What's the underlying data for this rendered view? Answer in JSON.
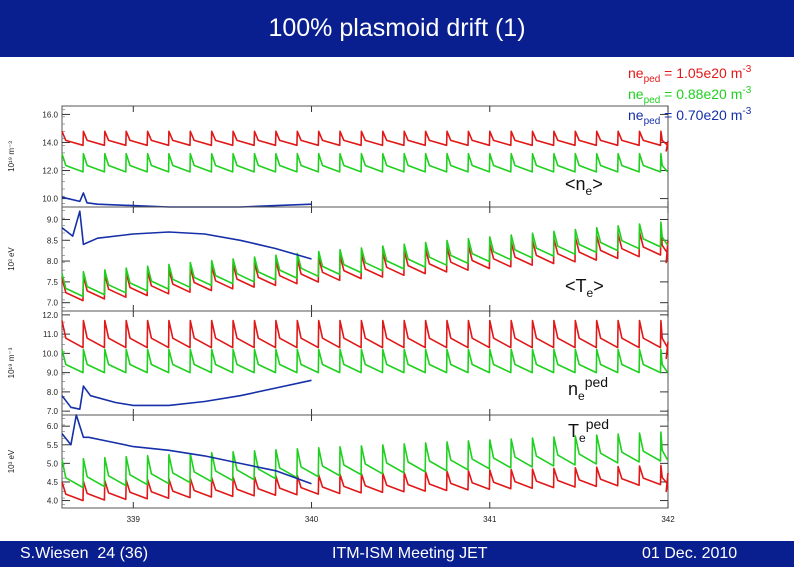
{
  "header": {
    "title": "100% plasmoid drift (1)"
  },
  "footer": {
    "author": "S.Wiesen",
    "page": "24 (36)",
    "meeting": "ITM-ISM Meeting JET",
    "date": "01 Dec. 2010"
  },
  "colors": {
    "bar": "#0a1f8f",
    "red": "#e01818",
    "green": "#20d020",
    "blue": "#1530a8"
  },
  "chart_data": {
    "type": "line",
    "x_ticks": [
      "339",
      "340",
      "341",
      "342"
    ],
    "x_tick_values": [
      339,
      340,
      341,
      342
    ],
    "xlim": [
      338.6,
      342.0
    ],
    "legend": [
      {
        "base": "ne",
        "sub": "ped",
        "rest": " = 1.05e20 m",
        "sup": "-3",
        "color": "#e01818"
      },
      {
        "base": "ne",
        "sub": "ped",
        "rest": " = 0.88e20 m",
        "sup": "-3",
        "color": "#20d020"
      },
      {
        "base": "ne",
        "sub": "ped",
        "rest": " = 0.70e20 m",
        "sup": "-3",
        "color": "#1530a8"
      }
    ],
    "legend_position": "top-right",
    "panels": [
      {
        "label": "<ne>",
        "label_base": "<n",
        "label_sub": "e",
        "label_end": ">",
        "ylabel": "10¹⁹  m⁻³",
        "yticks": [
          "10.0",
          "12.0",
          "14.0",
          "16.0"
        ],
        "ytick_values": [
          10,
          12,
          14,
          16
        ],
        "ylim": [
          9.4,
          16.6
        ],
        "series": [
          {
            "color": "red",
            "kind": "sawtooth",
            "start": 338.6,
            "end": 342.0,
            "period": 0.12,
            "high": 14.8,
            "low": 13.8,
            "endspike": true
          },
          {
            "color": "green",
            "kind": "sawtooth",
            "start": 338.6,
            "end": 342.0,
            "period": 0.12,
            "high": 13.2,
            "low": 11.9,
            "endspike": false
          },
          {
            "color": "blue",
            "kind": "points",
            "points": [
              [
                338.6,
                10.1
              ],
              [
                338.7,
                9.8
              ],
              [
                338.72,
                10.4
              ],
              [
                338.74,
                9.7
              ],
              [
                338.8,
                9.6
              ],
              [
                339.0,
                9.5
              ],
              [
                339.2,
                9.4
              ],
              [
                339.4,
                9.4
              ],
              [
                339.6,
                9.4
              ],
              [
                339.8,
                9.5
              ],
              [
                340.0,
                9.6
              ]
            ]
          }
        ]
      },
      {
        "label": "<Te>",
        "label_base": "<T",
        "label_sub": "e",
        "label_end": ">",
        "ylabel": "10³  eV",
        "yticks": [
          "7.0",
          "7.5",
          "8.0",
          "8.5",
          "9.0"
        ],
        "ytick_values": [
          7.0,
          7.5,
          8.0,
          8.5,
          9.0
        ],
        "ylim": [
          6.8,
          9.3
        ],
        "series": [
          {
            "color": "red",
            "kind": "sawtooth_ramp",
            "start": 338.6,
            "end": 342.0,
            "period": 0.12,
            "h0": 7.6,
            "h1": 8.75,
            "depth": 0.55,
            "endspike": true
          },
          {
            "color": "green",
            "kind": "sawtooth_ramp",
            "start": 338.6,
            "end": 342.0,
            "period": 0.12,
            "h0": 7.7,
            "h1": 8.95,
            "depth": 0.55,
            "endspike": false
          },
          {
            "color": "blue",
            "kind": "points",
            "points": [
              [
                338.6,
                8.8
              ],
              [
                338.66,
                8.6
              ],
              [
                338.7,
                9.2
              ],
              [
                338.72,
                8.4
              ],
              [
                338.8,
                8.55
              ],
              [
                339.0,
                8.65
              ],
              [
                339.2,
                8.7
              ],
              [
                339.4,
                8.65
              ],
              [
                339.6,
                8.5
              ],
              [
                339.8,
                8.3
              ],
              [
                340.0,
                8.05
              ]
            ]
          }
        ]
      },
      {
        "label": "neped",
        "label_base": "n",
        "label_sub": "e",
        "label_sup": "ped",
        "ylabel": "10¹⁹  m⁻³",
        "yticks": [
          "7.0",
          "8.0",
          "9.0",
          "10.0",
          "11.0",
          "12.0"
        ],
        "ytick_values": [
          7,
          8,
          9,
          10,
          11,
          12
        ],
        "ylim": [
          6.8,
          12.2
        ],
        "series": [
          {
            "color": "red",
            "kind": "sawtooth",
            "start": 338.6,
            "end": 342.0,
            "period": 0.12,
            "high": 11.7,
            "low": 10.3,
            "endspike": true
          },
          {
            "color": "green",
            "kind": "sawtooth",
            "start": 338.6,
            "end": 342.0,
            "period": 0.12,
            "high": 10.2,
            "low": 9.0,
            "endspike": false
          },
          {
            "color": "blue",
            "kind": "points",
            "points": [
              [
                338.6,
                7.8
              ],
              [
                338.65,
                7.2
              ],
              [
                338.7,
                7.1
              ],
              [
                338.72,
                8.3
              ],
              [
                338.76,
                7.8
              ],
              [
                338.9,
                7.45
              ],
              [
                339.0,
                7.3
              ],
              [
                339.2,
                7.3
              ],
              [
                339.4,
                7.5
              ],
              [
                339.6,
                7.8
              ],
              [
                339.8,
                8.2
              ],
              [
                340.0,
                8.6
              ]
            ]
          }
        ]
      },
      {
        "label": "Teped",
        "label_base": "T",
        "label_sub": "e",
        "label_sup": "ped",
        "ylabel": "10³  eV",
        "yticks": [
          "4.0",
          "4.5",
          "5.0",
          "5.5",
          "6.0"
        ],
        "ytick_values": [
          4.0,
          4.5,
          5.0,
          5.5,
          6.0
        ],
        "ylim": [
          3.8,
          6.3
        ],
        "series": [
          {
            "color": "red",
            "kind": "sawtooth_ramp",
            "start": 338.6,
            "end": 342.0,
            "period": 0.12,
            "h0": 4.5,
            "h1": 4.95,
            "depth": 0.5,
            "endspike": true
          },
          {
            "color": "green",
            "kind": "sawtooth_ramp",
            "start": 338.6,
            "end": 342.0,
            "period": 0.12,
            "h0": 5.1,
            "h1": 5.85,
            "depth": 0.75,
            "endspike": false
          },
          {
            "color": "blue",
            "kind": "points",
            "points": [
              [
                338.6,
                5.8
              ],
              [
                338.65,
                5.5
              ],
              [
                338.68,
                6.3
              ],
              [
                338.72,
                5.7
              ],
              [
                338.75,
                5.7
              ],
              [
                338.85,
                5.6
              ],
              [
                339.0,
                5.45
              ],
              [
                339.2,
                5.35
              ],
              [
                339.4,
                5.2
              ],
              [
                339.6,
                5.0
              ],
              [
                339.8,
                4.8
              ],
              [
                340.0,
                4.45
              ]
            ]
          }
        ]
      }
    ]
  }
}
